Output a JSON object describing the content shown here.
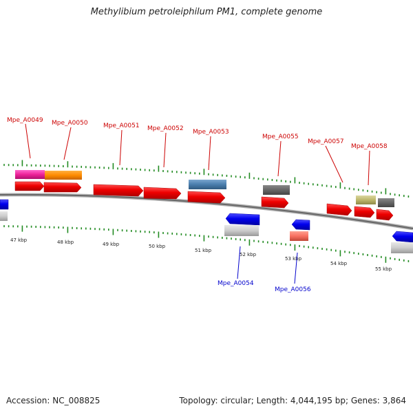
{
  "title": "Methylibium petroleiphilum PM1, complete genome",
  "footer": {
    "accession": "Accession: NC_008825",
    "summary": "Topology: circular; Length: 4,044,195 bp; Genes: 3,864"
  },
  "scale_labels": [
    "47 kbp",
    "48 kbp",
    "49 kbp",
    "50 kbp",
    "51 kbp",
    "52 kbp",
    "53 kbp",
    "54 kbp",
    "55 kbp"
  ],
  "forward_genes": [
    "Mpe_A0049",
    "Mpe_A0050",
    "Mpe_A0051",
    "Mpe_A0052",
    "Mpe_A0053",
    "Mpe_A0055",
    "Mpe_A0057",
    "Mpe_A0058"
  ],
  "reverse_genes": [
    "Mpe_A0054",
    "Mpe_A0056"
  ],
  "colors": {
    "gene_red": "#ee0000",
    "gene_blue": "#0000ee",
    "tick_green": "#228b22",
    "backbone": "#777777",
    "label_red": "#cc0000",
    "label_blue": "#0000cc"
  }
}
